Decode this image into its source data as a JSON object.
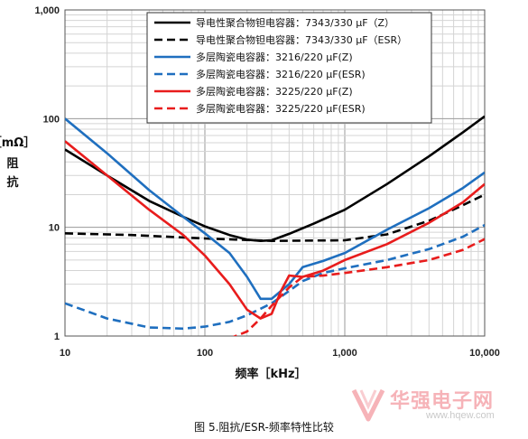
{
  "chart_data": {
    "type": "line",
    "title": "",
    "xlabel": "频率［kHz］",
    "ylabel": "［mΩ］阻抗",
    "xscale": "log",
    "yscale": "log",
    "xlim": [
      10,
      10000
    ],
    "ylim": [
      1,
      1000
    ],
    "grid": true,
    "legend_position": "top-right",
    "x_ticks": [
      {
        "value": 10,
        "label": "10"
      },
      {
        "value": 100,
        "label": "100"
      },
      {
        "value": 1000,
        "label": "1,000"
      },
      {
        "value": 10000,
        "label": "10,000"
      }
    ],
    "y_ticks": [
      {
        "value": 1,
        "label": "1"
      },
      {
        "value": 10,
        "label": "10"
      },
      {
        "value": 100,
        "label": "100"
      },
      {
        "value": 1000,
        "label": "1,000"
      }
    ],
    "series": [
      {
        "name": "导电性聚合物钽电容器：7343/330 μF（Z）",
        "color": "#000000",
        "dash": false,
        "x": [
          10,
          20,
          40,
          70,
          100,
          150,
          200,
          250,
          300,
          400,
          600,
          1000,
          2000,
          4000,
          7000,
          10000
        ],
        "y": [
          52,
          30,
          17.5,
          12.5,
          10.2,
          8.5,
          7.7,
          7.5,
          7.6,
          8.7,
          10.8,
          14.5,
          25,
          45,
          75,
          105
        ]
      },
      {
        "name": "导电性聚合物钽电容器：7343/330 μF（ESR）",
        "color": "#000000",
        "dash": true,
        "x": [
          10,
          30,
          100,
          300,
          1000,
          2000,
          4000,
          7000,
          10000
        ],
        "y": [
          8.8,
          8.5,
          7.9,
          7.5,
          7.6,
          8.6,
          11.5,
          16,
          20
        ]
      },
      {
        "name": "多层陶瓷电容器：3216/220 μF(Z)",
        "color": "#1f6fbf",
        "dash": false,
        "x": [
          10,
          20,
          40,
          70,
          100,
          150,
          200,
          250,
          300,
          400,
          500,
          700,
          1000,
          2000,
          4000,
          7000,
          10000
        ],
        "y": [
          100,
          48,
          22,
          12.5,
          8.8,
          5.8,
          3.5,
          2.2,
          2.2,
          3.0,
          4.3,
          4.9,
          5.8,
          9.5,
          15,
          23,
          32
        ]
      },
      {
        "name": "多层陶瓷电容器：3216/220 μF(ESR)",
        "color": "#1f6fbf",
        "dash": true,
        "x": [
          10,
          20,
          40,
          70,
          100,
          150,
          200,
          300,
          400,
          500,
          700,
          1000,
          2000,
          4000,
          7000,
          10000
        ],
        "y": [
          2.0,
          1.45,
          1.2,
          1.17,
          1.22,
          1.35,
          1.55,
          2.0,
          2.6,
          3.2,
          3.8,
          4.2,
          5.0,
          6.3,
          8.2,
          10.5
        ]
      },
      {
        "name": "多层陶瓷电容器：3225/220 μF(Z)",
        "color": "#e81c1c",
        "dash": false,
        "x": [
          10,
          20,
          40,
          70,
          100,
          150,
          200,
          250,
          300,
          350,
          400,
          500,
          700,
          1000,
          2000,
          4000,
          7000,
          10000
        ],
        "y": [
          62,
          30,
          14.5,
          8.5,
          5.5,
          3.0,
          1.75,
          1.45,
          1.6,
          2.6,
          3.6,
          3.5,
          4.0,
          5.0,
          7.0,
          11,
          17,
          25
        ]
      },
      {
        "name": "多层陶瓷电容器：3225/220 μF(ESR)",
        "color": "#e81c1c",
        "dash": true,
        "x": [
          10,
          13,
          150,
          200,
          250,
          300,
          400,
          500,
          700,
          1000,
          2000,
          4000,
          7000,
          10000
        ],
        "y": [
          0.95,
          0.95,
          0.95,
          1.1,
          1.45,
          1.9,
          2.8,
          3.5,
          3.6,
          3.8,
          4.3,
          5.0,
          6.2,
          7.8
        ]
      }
    ]
  },
  "caption": "图 5.阻抗/ESR-频率特性比较",
  "watermark": {
    "cn": "华强电子网",
    "url": "www.hqew.com"
  }
}
